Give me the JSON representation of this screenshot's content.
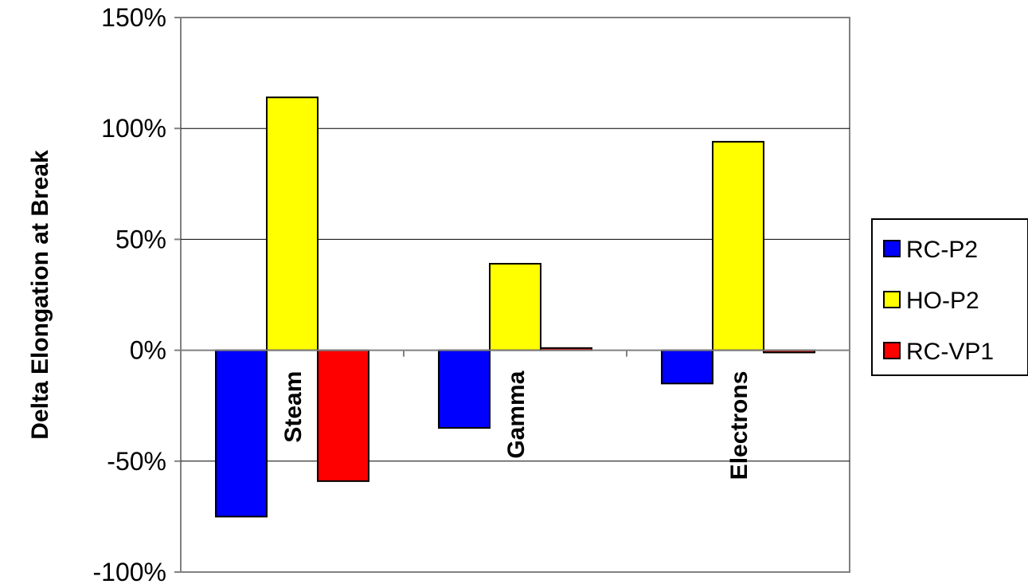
{
  "chart_data": {
    "type": "bar",
    "title": "",
    "xlabel": "",
    "ylabel": "Delta Elongation at Break",
    "categories": [
      "Steam",
      "Gamma",
      "Electrons"
    ],
    "series": [
      {
        "name": "RC-P2",
        "color": "#0000ff",
        "values": [
          -0.75,
          -0.35,
          -0.15
        ]
      },
      {
        "name": "HO-P2",
        "color": "#ffff00",
        "values": [
          1.14,
          0.39,
          0.94
        ]
      },
      {
        "name": "RC-VP1",
        "color": "#ff0000",
        "values": [
          -0.59,
          0.01,
          -0.01
        ]
      }
    ],
    "ylim": [
      -1.0,
      1.5
    ],
    "yticks": [
      -1.0,
      -0.5,
      0.0,
      0.5,
      1.0,
      1.5
    ],
    "ytick_labels": [
      "-100%",
      "-50%",
      "0%",
      "50%",
      "100%",
      "150%"
    ],
    "grid": true,
    "legend_position": "right"
  }
}
